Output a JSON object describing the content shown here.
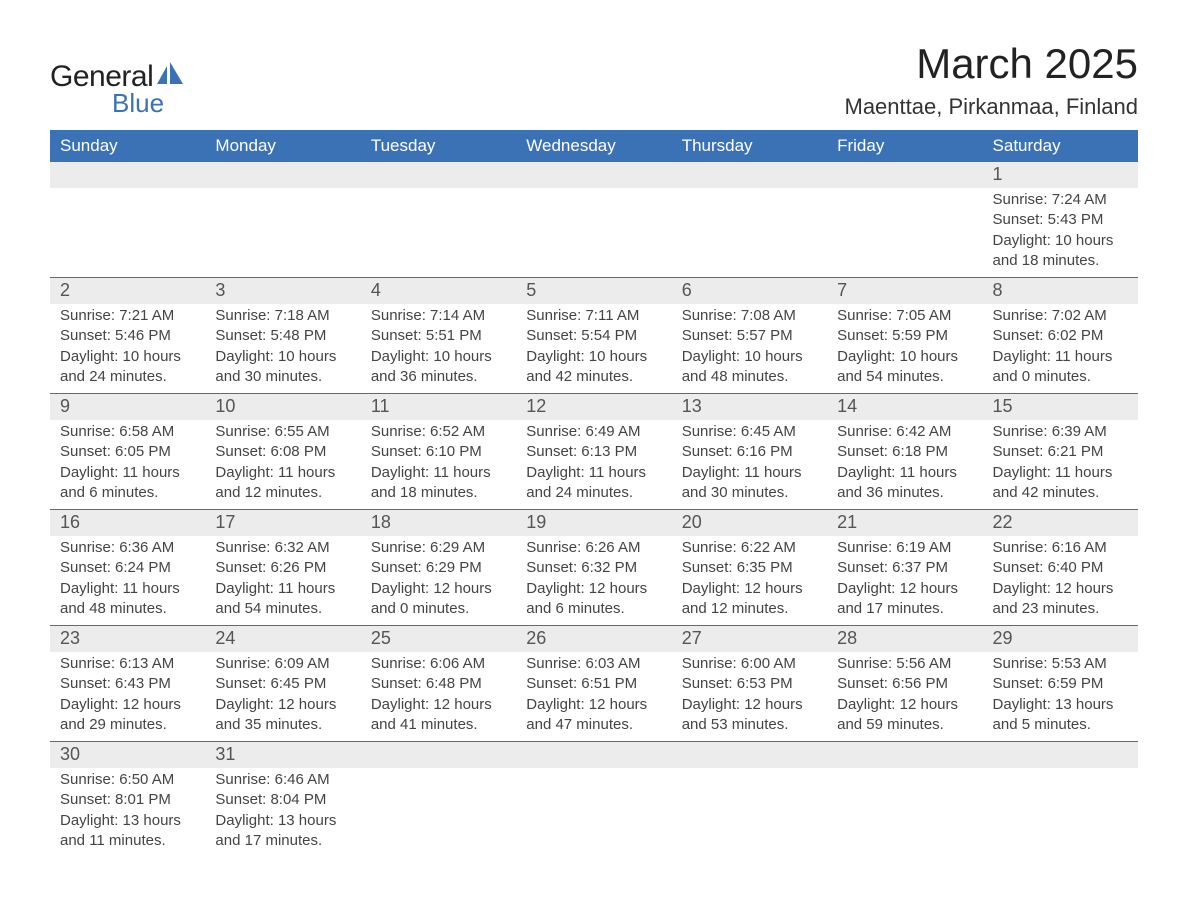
{
  "brand": {
    "text_general": "General",
    "text_blue": "Blue",
    "accent_color": "#3a72b5"
  },
  "title": {
    "month": "March 2025",
    "location": "Maenttae, Pirkanmaa, Finland"
  },
  "calendar": {
    "header_bg": "#3a72b5",
    "header_fg": "#ffffff",
    "daynum_bg": "#ececec",
    "divider_color": "#3a72b5",
    "columns": [
      "Sunday",
      "Monday",
      "Tuesday",
      "Wednesday",
      "Thursday",
      "Friday",
      "Saturday"
    ],
    "weeks": [
      [
        null,
        null,
        null,
        null,
        null,
        null,
        {
          "n": "1",
          "sunrise": "Sunrise: 7:24 AM",
          "sunset": "Sunset: 5:43 PM",
          "day1": "Daylight: 10 hours",
          "day2": "and 18 minutes."
        }
      ],
      [
        {
          "n": "2",
          "sunrise": "Sunrise: 7:21 AM",
          "sunset": "Sunset: 5:46 PM",
          "day1": "Daylight: 10 hours",
          "day2": "and 24 minutes."
        },
        {
          "n": "3",
          "sunrise": "Sunrise: 7:18 AM",
          "sunset": "Sunset: 5:48 PM",
          "day1": "Daylight: 10 hours",
          "day2": "and 30 minutes."
        },
        {
          "n": "4",
          "sunrise": "Sunrise: 7:14 AM",
          "sunset": "Sunset: 5:51 PM",
          "day1": "Daylight: 10 hours",
          "day2": "and 36 minutes."
        },
        {
          "n": "5",
          "sunrise": "Sunrise: 7:11 AM",
          "sunset": "Sunset: 5:54 PM",
          "day1": "Daylight: 10 hours",
          "day2": "and 42 minutes."
        },
        {
          "n": "6",
          "sunrise": "Sunrise: 7:08 AM",
          "sunset": "Sunset: 5:57 PM",
          "day1": "Daylight: 10 hours",
          "day2": "and 48 minutes."
        },
        {
          "n": "7",
          "sunrise": "Sunrise: 7:05 AM",
          "sunset": "Sunset: 5:59 PM",
          "day1": "Daylight: 10 hours",
          "day2": "and 54 minutes."
        },
        {
          "n": "8",
          "sunrise": "Sunrise: 7:02 AM",
          "sunset": "Sunset: 6:02 PM",
          "day1": "Daylight: 11 hours",
          "day2": "and 0 minutes."
        }
      ],
      [
        {
          "n": "9",
          "sunrise": "Sunrise: 6:58 AM",
          "sunset": "Sunset: 6:05 PM",
          "day1": "Daylight: 11 hours",
          "day2": "and 6 minutes."
        },
        {
          "n": "10",
          "sunrise": "Sunrise: 6:55 AM",
          "sunset": "Sunset: 6:08 PM",
          "day1": "Daylight: 11 hours",
          "day2": "and 12 minutes."
        },
        {
          "n": "11",
          "sunrise": "Sunrise: 6:52 AM",
          "sunset": "Sunset: 6:10 PM",
          "day1": "Daylight: 11 hours",
          "day2": "and 18 minutes."
        },
        {
          "n": "12",
          "sunrise": "Sunrise: 6:49 AM",
          "sunset": "Sunset: 6:13 PM",
          "day1": "Daylight: 11 hours",
          "day2": "and 24 minutes."
        },
        {
          "n": "13",
          "sunrise": "Sunrise: 6:45 AM",
          "sunset": "Sunset: 6:16 PM",
          "day1": "Daylight: 11 hours",
          "day2": "and 30 minutes."
        },
        {
          "n": "14",
          "sunrise": "Sunrise: 6:42 AM",
          "sunset": "Sunset: 6:18 PM",
          "day1": "Daylight: 11 hours",
          "day2": "and 36 minutes."
        },
        {
          "n": "15",
          "sunrise": "Sunrise: 6:39 AM",
          "sunset": "Sunset: 6:21 PM",
          "day1": "Daylight: 11 hours",
          "day2": "and 42 minutes."
        }
      ],
      [
        {
          "n": "16",
          "sunrise": "Sunrise: 6:36 AM",
          "sunset": "Sunset: 6:24 PM",
          "day1": "Daylight: 11 hours",
          "day2": "and 48 minutes."
        },
        {
          "n": "17",
          "sunrise": "Sunrise: 6:32 AM",
          "sunset": "Sunset: 6:26 PM",
          "day1": "Daylight: 11 hours",
          "day2": "and 54 minutes."
        },
        {
          "n": "18",
          "sunrise": "Sunrise: 6:29 AM",
          "sunset": "Sunset: 6:29 PM",
          "day1": "Daylight: 12 hours",
          "day2": "and 0 minutes."
        },
        {
          "n": "19",
          "sunrise": "Sunrise: 6:26 AM",
          "sunset": "Sunset: 6:32 PM",
          "day1": "Daylight: 12 hours",
          "day2": "and 6 minutes."
        },
        {
          "n": "20",
          "sunrise": "Sunrise: 6:22 AM",
          "sunset": "Sunset: 6:35 PM",
          "day1": "Daylight: 12 hours",
          "day2": "and 12 minutes."
        },
        {
          "n": "21",
          "sunrise": "Sunrise: 6:19 AM",
          "sunset": "Sunset: 6:37 PM",
          "day1": "Daylight: 12 hours",
          "day2": "and 17 minutes."
        },
        {
          "n": "22",
          "sunrise": "Sunrise: 6:16 AM",
          "sunset": "Sunset: 6:40 PM",
          "day1": "Daylight: 12 hours",
          "day2": "and 23 minutes."
        }
      ],
      [
        {
          "n": "23",
          "sunrise": "Sunrise: 6:13 AM",
          "sunset": "Sunset: 6:43 PM",
          "day1": "Daylight: 12 hours",
          "day2": "and 29 minutes."
        },
        {
          "n": "24",
          "sunrise": "Sunrise: 6:09 AM",
          "sunset": "Sunset: 6:45 PM",
          "day1": "Daylight: 12 hours",
          "day2": "and 35 minutes."
        },
        {
          "n": "25",
          "sunrise": "Sunrise: 6:06 AM",
          "sunset": "Sunset: 6:48 PM",
          "day1": "Daylight: 12 hours",
          "day2": "and 41 minutes."
        },
        {
          "n": "26",
          "sunrise": "Sunrise: 6:03 AM",
          "sunset": "Sunset: 6:51 PM",
          "day1": "Daylight: 12 hours",
          "day2": "and 47 minutes."
        },
        {
          "n": "27",
          "sunrise": "Sunrise: 6:00 AM",
          "sunset": "Sunset: 6:53 PM",
          "day1": "Daylight: 12 hours",
          "day2": "and 53 minutes."
        },
        {
          "n": "28",
          "sunrise": "Sunrise: 5:56 AM",
          "sunset": "Sunset: 6:56 PM",
          "day1": "Daylight: 12 hours",
          "day2": "and 59 minutes."
        },
        {
          "n": "29",
          "sunrise": "Sunrise: 5:53 AM",
          "sunset": "Sunset: 6:59 PM",
          "day1": "Daylight: 13 hours",
          "day2": "and 5 minutes."
        }
      ],
      [
        {
          "n": "30",
          "sunrise": "Sunrise: 6:50 AM",
          "sunset": "Sunset: 8:01 PM",
          "day1": "Daylight: 13 hours",
          "day2": "and 11 minutes."
        },
        {
          "n": "31",
          "sunrise": "Sunrise: 6:46 AM",
          "sunset": "Sunset: 8:04 PM",
          "day1": "Daylight: 13 hours",
          "day2": "and 17 minutes."
        },
        null,
        null,
        null,
        null,
        null
      ]
    ]
  }
}
